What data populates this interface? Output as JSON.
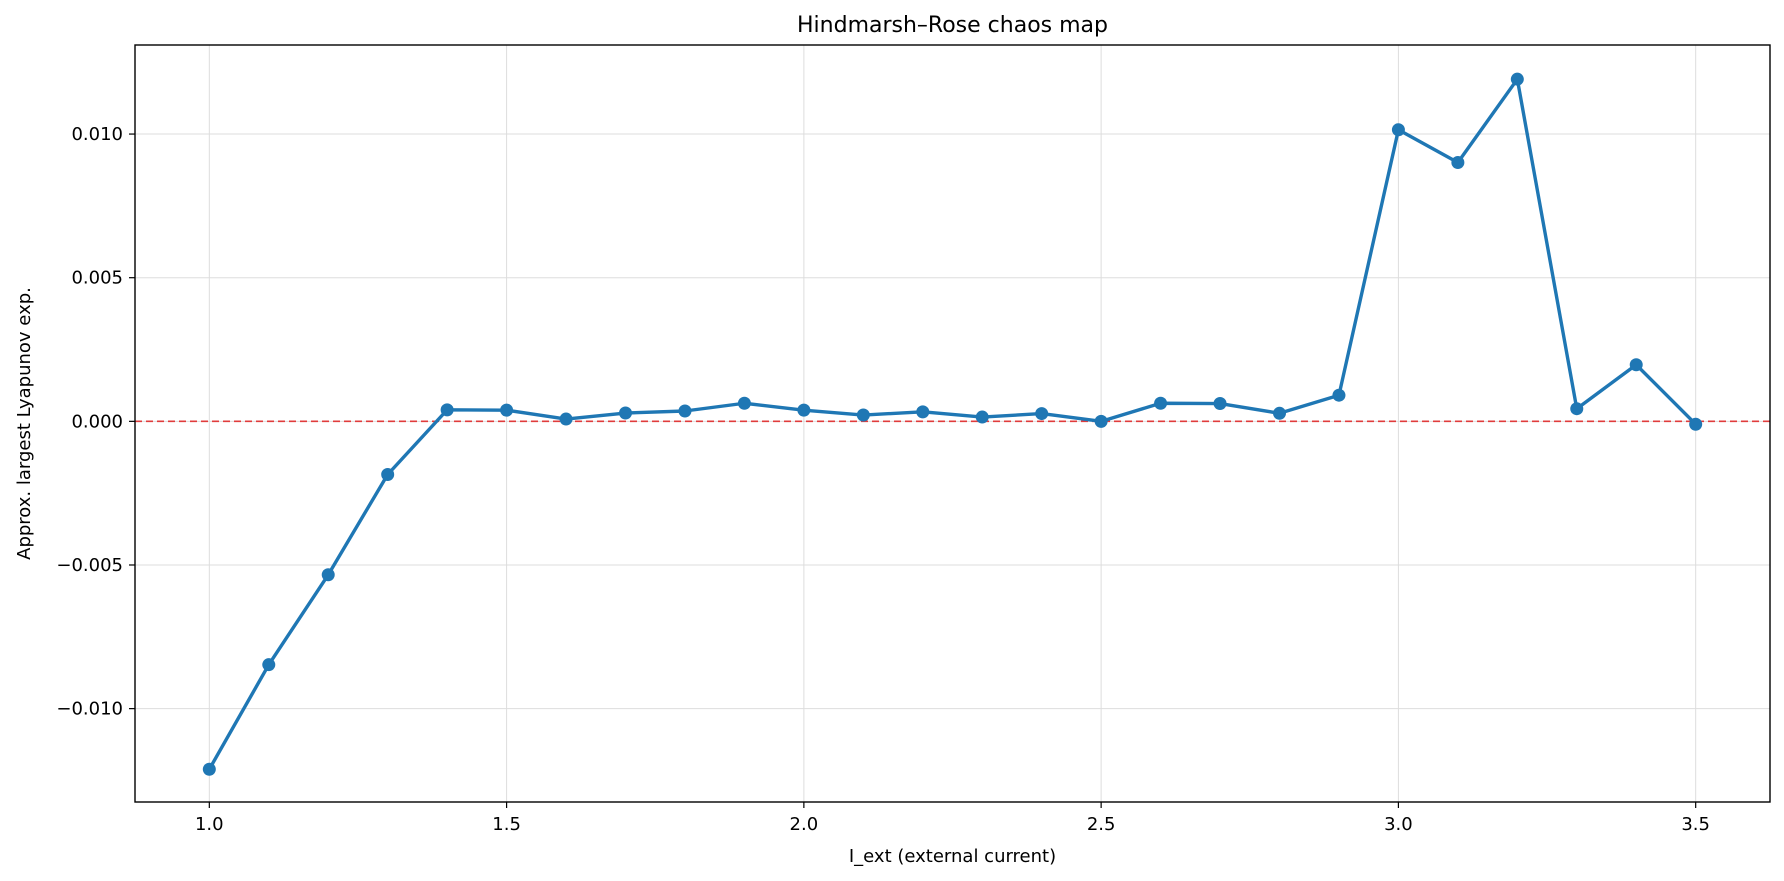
{
  "chart_data": {
    "type": "line",
    "title": "Hindmarsh–Rose chaos map",
    "xlabel": "I_ext (external current)",
    "ylabel": "Approx. largest Lyapunov exp.",
    "xlim": [
      0.875,
      3.625
    ],
    "ylim": [
      -0.01325,
      0.0131
    ],
    "xticks": [
      1.0,
      1.5,
      2.0,
      2.5,
      3.0,
      3.5
    ],
    "xtick_labels": [
      "1.0",
      "1.5",
      "2.0",
      "2.5",
      "3.0",
      "3.5"
    ],
    "yticks": [
      -0.01,
      -0.005,
      0.0,
      0.005,
      0.01
    ],
    "ytick_labels": [
      "−0.010",
      "−0.005",
      "0.000",
      "0.005",
      "0.010"
    ],
    "grid": true,
    "reference_line": {
      "y": 0.0,
      "color": "#e03c3c",
      "style": "dashed"
    },
    "series": [
      {
        "color": "#1f77b4",
        "marker": "circle",
        "x": [
          1.0,
          1.1,
          1.2,
          1.3,
          1.4,
          1.5,
          1.6,
          1.7,
          1.8,
          1.9,
          2.0,
          2.1,
          2.2,
          2.3,
          2.4,
          2.5,
          2.6,
          2.7,
          2.8,
          2.9,
          3.0,
          3.1,
          3.2,
          3.3,
          3.4,
          3.5
        ],
        "y": [
          -0.01211,
          -0.00847,
          -0.00534,
          -0.00185,
          0.0004,
          0.00039,
          8e-05,
          0.00029,
          0.00036,
          0.00063,
          0.00039,
          0.00022,
          0.00033,
          0.00015,
          0.00027,
          0.0,
          0.00063,
          0.00062,
          0.00028,
          0.00091,
          0.01015,
          0.00901,
          0.01191,
          0.00044,
          0.00197,
          -0.0001
        ]
      }
    ]
  }
}
